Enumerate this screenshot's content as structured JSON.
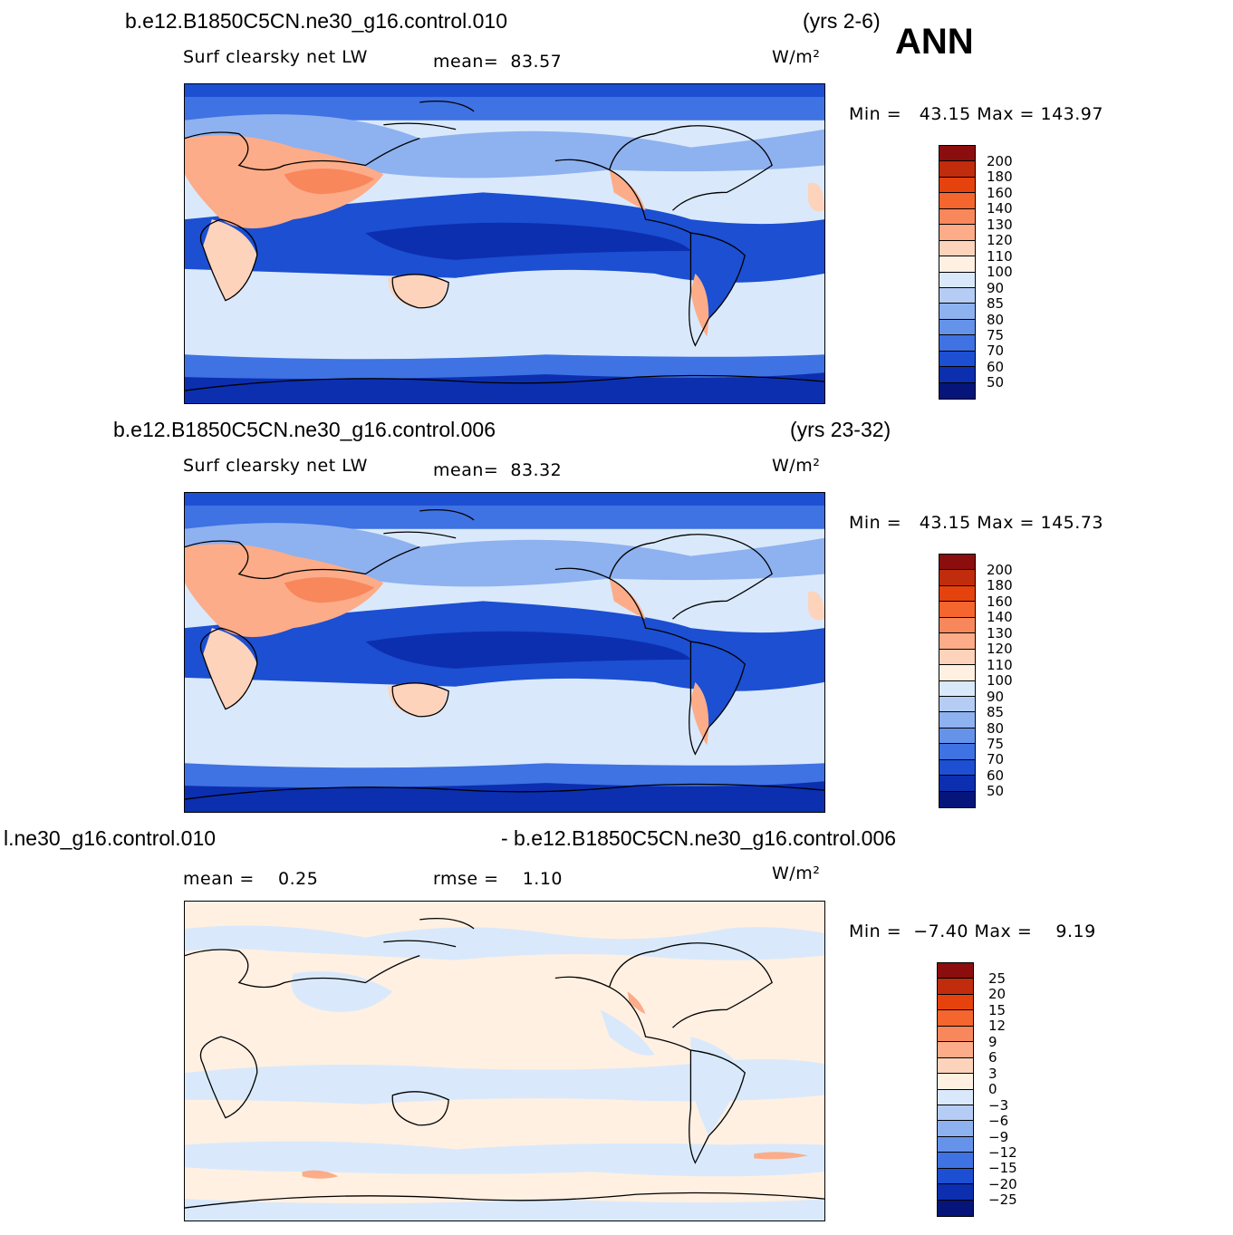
{
  "title_label": "ANN",
  "panels": [
    {
      "case_name": "b.e12.B1850C5CN.ne30_g16.control.010",
      "years": "(yrs 2-6)",
      "variable": "Surf clearsky net LW",
      "stat1": "mean=  83.57",
      "units": "W/m²",
      "minmax": "Min =   43.15 Max = 143.97",
      "colorbar_labels": [
        "200",
        "180",
        "160",
        "140",
        "130",
        "120",
        "110",
        "100",
        "90",
        "85",
        "80",
        "75",
        "70",
        "60",
        "50"
      ],
      "colorbar_colors": [
        "#8b0d0d",
        "#c02c0c",
        "#e6420e",
        "#f5652e",
        "#f9875c",
        "#fcac88",
        "#fdd3bc",
        "#fff0e2",
        "#d9e9fb",
        "#b5cdf5",
        "#8eb1f0",
        "#6693ea",
        "#3f72e2",
        "#1c4fd2",
        "#0c2fb0",
        "#05157a"
      ]
    },
    {
      "case_name": "b.e12.B1850C5CN.ne30_g16.control.006",
      "years": "(yrs 23-32)",
      "variable": "Surf clearsky net LW",
      "stat1": "mean=  83.32",
      "units": "W/m²",
      "minmax": "Min =   43.15 Max = 145.73",
      "colorbar_labels": [
        "200",
        "180",
        "160",
        "140",
        "130",
        "120",
        "110",
        "100",
        "90",
        "85",
        "80",
        "75",
        "70",
        "60",
        "50"
      ],
      "colorbar_colors": [
        "#8b0d0d",
        "#c02c0c",
        "#e6420e",
        "#f5652e",
        "#f9875c",
        "#fcac88",
        "#fdd3bc",
        "#fff0e2",
        "#d9e9fb",
        "#b5cdf5",
        "#8eb1f0",
        "#6693ea",
        "#3f72e2",
        "#1c4fd2",
        "#0c2fb0",
        "#05157a"
      ]
    },
    {
      "case_left": "l.ne30_g16.control.010",
      "case_right": "- b.e12.B1850C5CN.ne30_g16.control.006",
      "stat1": "mean =    0.25",
      "stat2": "rmse =    1.10",
      "units": "W/m²",
      "minmax": "Min =  −7.40 Max =    9.19",
      "colorbar_labels": [
        "25",
        "20",
        "15",
        "12",
        "9",
        "6",
        "3",
        "0",
        "−3",
        "−6",
        "−9",
        "−12",
        "−15",
        "−20",
        "−25"
      ],
      "colorbar_colors": [
        "#8b0d0d",
        "#c02c0c",
        "#e6420e",
        "#f5652e",
        "#f9875c",
        "#fcac88",
        "#fdd3bc",
        "#fff0e2",
        "#d9e9fb",
        "#b5cdf5",
        "#8eb1f0",
        "#6693ea",
        "#3f72e2",
        "#1c4fd2",
        "#0c2fb0",
        "#05157a"
      ]
    }
  ]
}
